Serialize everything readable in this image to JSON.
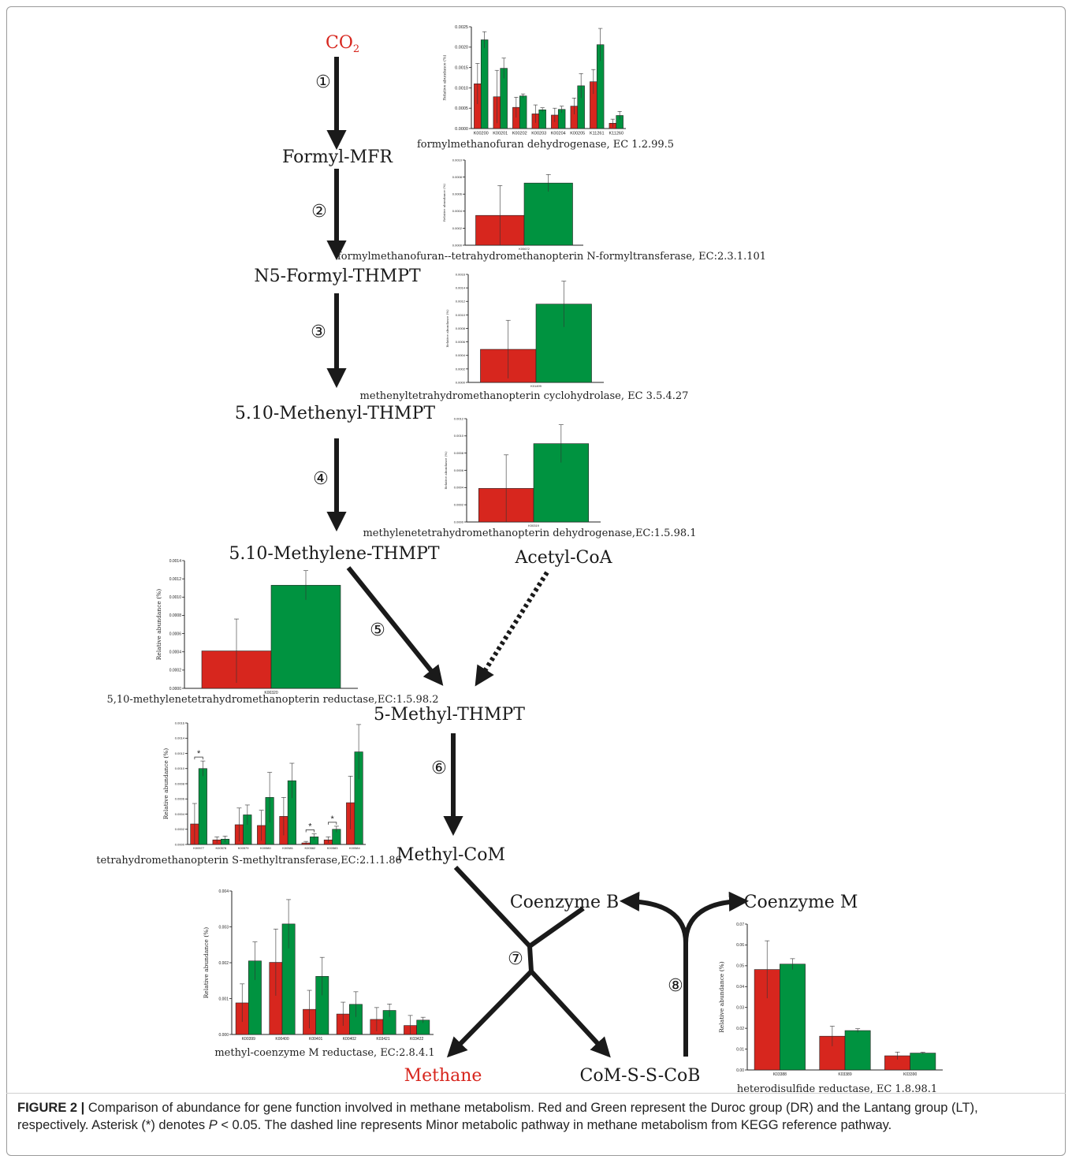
{
  "colors": {
    "dr": "#d7261e",
    "lt": "#009340",
    "arrow": "#1a1a1a",
    "highlight": "#d7261e"
  },
  "nodes": {
    "co2": "CO",
    "co2_sub": "2",
    "formyl_mfr": "Formyl-MFR",
    "n5_formyl": "N5-Formyl-THMPT",
    "methenyl": "5.10-Methenyl-THMPT",
    "methylene": "5.10-Methylene-THMPT",
    "acetyl_coa": "Acetyl-CoA",
    "methyl_thmpt": "5-Methyl-THMPT",
    "methyl_com": "Methyl-CoM",
    "coenzyme_b": "Coenzyme B",
    "coenzyme_m": "Coenzyme M",
    "methane": "Methane",
    "com_s_s_cob": "CoM-S-S-CoB"
  },
  "steps": [
    "①",
    "②",
    "③",
    "④",
    "⑤",
    "⑥",
    "⑦",
    "⑧"
  ],
  "chart_data": [
    {
      "type": "bar",
      "title": "formylmethanofuran dehydrogenase, EC 1.2.99.5",
      "ylabel": "Relative abundance (%)",
      "ylim": [
        0,
        0.0025
      ],
      "yticks": [
        "0.0000",
        "0.0005",
        "0.0010",
        "0.0015",
        "0.0020",
        "0.0025"
      ],
      "categories": [
        "K00200",
        "K00201",
        "K00202",
        "K00203",
        "K00204",
        "K00205",
        "K11261",
        "K11260"
      ],
      "series": [
        {
          "values": [
            0.0011,
            0.00078,
            0.00052,
            0.00036,
            0.00033,
            0.00055,
            0.00115,
            0.00013
          ],
          "err": [
            0.0005,
            0.00065,
            0.00025,
            0.00022,
            0.00017,
            0.0002,
            0.0003,
            0.0001
          ]
        },
        {
          "values": [
            0.00218,
            0.00148,
            0.0008,
            0.00046,
            0.00047,
            0.00105,
            0.00206,
            0.00032
          ],
          "err": [
            0.0002,
            0.00025,
            5e-05,
            5e-05,
            8e-05,
            0.0003,
            0.0004,
            0.0001
          ]
        }
      ]
    },
    {
      "type": "bar",
      "title": "formylmethanofuran--tetrahydromethanopterin N-formyltransferase, EC:2.3.1.101",
      "ylabel": "Relative abundance (%)",
      "ylim": [
        0,
        0.001
      ],
      "yticks": [
        "0.0000",
        "0.0002",
        "0.0004",
        "0.0006",
        "0.0008",
        "0.0010"
      ],
      "categories": [
        "K00672"
      ],
      "series": [
        {
          "values": [
            0.00035
          ],
          "err": [
            0.00035
          ]
        },
        {
          "values": [
            0.00073
          ],
          "err": [
            0.0001
          ]
        }
      ]
    },
    {
      "type": "bar",
      "title": "methenyltetrahydromethanopterin cyclohydrolase, EC 3.5.4.27",
      "ylabel": "Relative abundance (%)",
      "ylim": [
        0,
        0.0016
      ],
      "yticks": [
        "0.0000",
        "0.0002",
        "0.0004",
        "0.0006",
        "0.0008",
        "0.0010",
        "0.0012",
        "0.0014",
        "0.0016"
      ],
      "categories": [
        "K01499"
      ],
      "series": [
        {
          "values": [
            0.00049
          ],
          "err": [
            0.00043
          ]
        },
        {
          "values": [
            0.00116
          ],
          "err": [
            0.00034
          ]
        }
      ]
    },
    {
      "type": "bar",
      "title": "methylenetetrahydromethanopterin dehydrogenase,EC:1.5.98.1",
      "ylabel": "Relative abundance (%)",
      "ylim": [
        0,
        0.0012
      ],
      "yticks": [
        "0.0000",
        "0.0002",
        "0.0004",
        "0.0006",
        "0.0008",
        "0.0010",
        "0.0012"
      ],
      "categories": [
        "K00319"
      ],
      "series": [
        {
          "values": [
            0.00039
          ],
          "err": [
            0.00039
          ]
        },
        {
          "values": [
            0.00091
          ],
          "err": [
            0.00022
          ]
        }
      ]
    },
    {
      "type": "bar",
      "title": "5,10-methylenetetrahydromethanopterin reductase,EC:1.5.98.2",
      "ylabel": "Relative abundance (%)",
      "ylim": [
        0,
        0.0014
      ],
      "yticks": [
        "0.0000",
        "0.0002",
        "0.0004",
        "0.0006",
        "0.0008",
        "0.0010",
        "0.0012",
        "0.0014"
      ],
      "categories": [
        "K00320"
      ],
      "series": [
        {
          "values": [
            0.00041
          ],
          "err": [
            0.00035
          ]
        },
        {
          "values": [
            0.00113
          ],
          "err": [
            0.00016
          ]
        }
      ]
    },
    {
      "type": "bar",
      "title": "tetrahydromethanopterin S-methyltransferase,EC:2.1.1.86",
      "ylabel": "Relative abundance (%)",
      "ylim": [
        0,
        0.0016
      ],
      "yticks": [
        "0.0000",
        "0.0002",
        "0.0004",
        "0.0006",
        "0.0008",
        "0.0010",
        "0.0012",
        "0.0014",
        "0.0016"
      ],
      "categories": [
        "K00577",
        "K00578",
        "K00579",
        "K00580",
        "K00581",
        "K00582",
        "K00583",
        "K00584"
      ],
      "series": [
        {
          "values": [
            0.00027,
            6e-05,
            0.00026,
            0.00025,
            0.00037,
            2e-05,
            6e-05,
            0.00055
          ],
          "err": [
            0.00027,
            4e-05,
            0.00022,
            0.0002,
            0.00025,
            2e-05,
            4e-05,
            0.00035
          ]
        },
        {
          "values": [
            0.001,
            7e-05,
            0.00039,
            0.00062,
            0.00084,
            0.0001,
            0.0002,
            0.00122
          ],
          "err": [
            0.0001,
            4e-05,
            0.00013,
            0.00033,
            0.00023,
            4e-05,
            4e-05,
            0.00036
          ]
        }
      ],
      "significance": [
        {
          "index": 0,
          "label": "*"
        },
        {
          "index": 5,
          "label": "*"
        },
        {
          "index": 6,
          "label": "*"
        }
      ]
    },
    {
      "type": "bar",
      "title": "methyl-coenzyme M reductase, EC:2.8.4.1",
      "ylabel": "Relative abundance (%)",
      "ylim": [
        0,
        0.004
      ],
      "yticks": [
        "0.000",
        "0.001",
        "0.002",
        "0.003",
        "0.004"
      ],
      "categories": [
        "K00399",
        "K00400",
        "K00401",
        "K00402",
        "K03421",
        "K03422"
      ],
      "series": [
        {
          "values": [
            0.00088,
            0.00201,
            0.0007,
            0.00057,
            0.00042,
            0.00025
          ],
          "err": [
            0.00053,
            0.00093,
            0.00053,
            0.00033,
            0.00033,
            0.00028
          ]
        },
        {
          "values": [
            0.00205,
            0.00308,
            0.00162,
            0.00084,
            0.00067,
            0.0004
          ],
          "err": [
            0.00053,
            0.00068,
            0.00053,
            0.00035,
            0.00018,
            8e-05
          ]
        }
      ]
    },
    {
      "type": "bar",
      "title": "heterodisulfide reductase, EC 1.8.98.1",
      "ylabel": "Relative abundance (%)",
      "ylim": [
        0,
        0.07
      ],
      "yticks": [
        "0.00",
        "0.01",
        "0.02",
        "0.03",
        "0.04",
        "0.05",
        "0.06",
        "0.07"
      ],
      "categories": [
        "K03388",
        "K03389",
        "K03390"
      ],
      "series": [
        {
          "values": [
            0.0482,
            0.0162,
            0.0068
          ],
          "err": [
            0.0138,
            0.0048,
            0.0018
          ]
        },
        {
          "values": [
            0.0508,
            0.0189,
            0.0081
          ],
          "err": [
            0.0026,
            0.0009,
            0.0004
          ]
        }
      ]
    }
  ],
  "caption": {
    "label": "FIGURE 2 |",
    "text1": " Comparison of abundance for gene function involved in methane metabolism. Red and Green represent the Duroc group (DR) and the Lantang group (LT), respectively. Asterisk (*) denotes ",
    "p": "P",
    "text2": " < 0.05. The dashed line represents Minor metabolic pathway in methane metabolism from KEGG reference pathway."
  }
}
